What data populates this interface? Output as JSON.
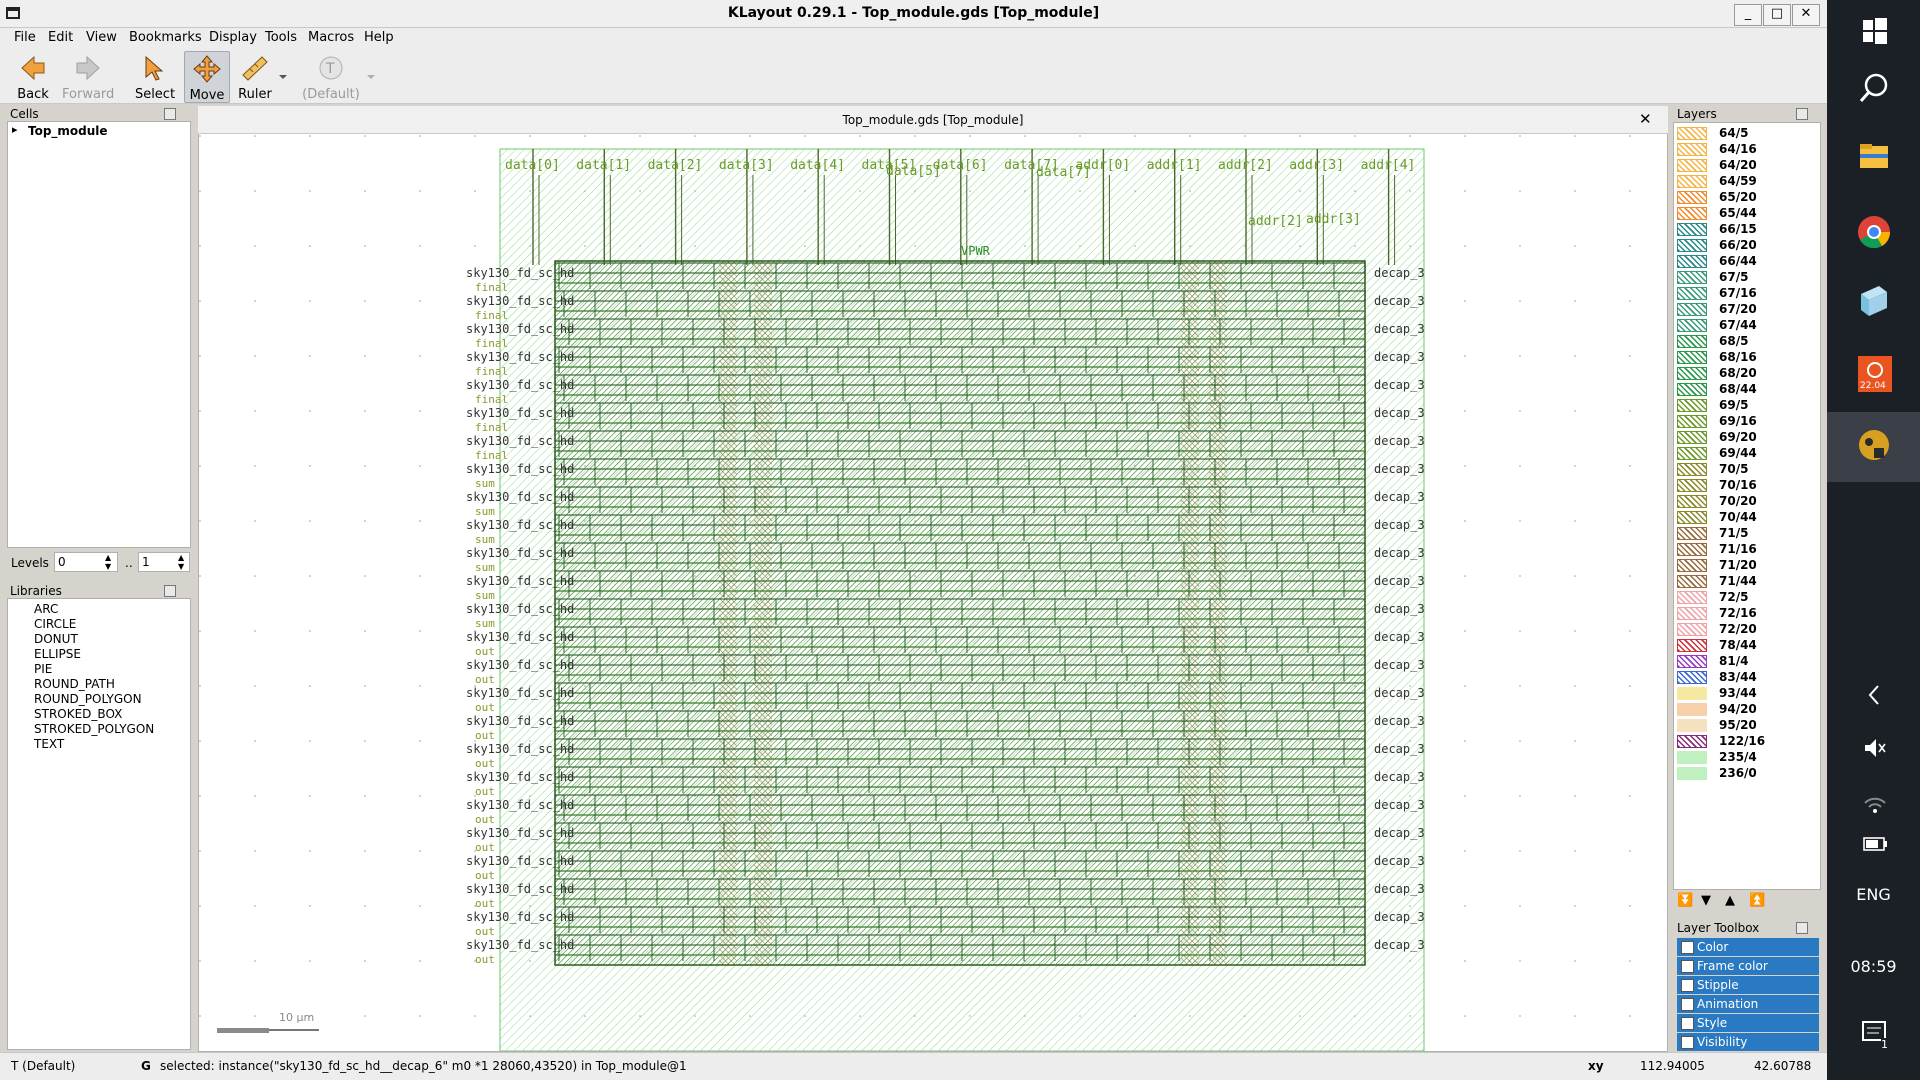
{
  "window": {
    "title": "KLayout 0.29.1 - Top_module.gds [Top_module]",
    "controls": [
      "_",
      "□",
      "✕"
    ]
  },
  "menu": [
    "File",
    "Edit",
    "View",
    "Bookmarks",
    "Display",
    "Tools",
    "Macros",
    "Help"
  ],
  "toolbar": {
    "back": "Back",
    "forward": "Forward",
    "select": "Select",
    "move": "Move",
    "ruler": "Ruler",
    "default": "(Default)"
  },
  "cells": {
    "title": "Cells",
    "tree_item": "Top_module",
    "tree_arrow": "▸"
  },
  "levels": {
    "label": "Levels",
    "from": "0",
    "sep": "..",
    "to": "1"
  },
  "libraries": {
    "title": "Libraries",
    "items": [
      "ARC",
      "CIRCLE",
      "DONUT",
      "ELLIPSE",
      "PIE",
      "ROUND_PATH",
      "ROUND_POLYGON",
      "STROKED_BOX",
      "STROKED_POLYGON",
      "TEXT"
    ]
  },
  "canvas": {
    "tab_title": "Top_module.gds [Top_module]",
    "scale_label": "10 µm",
    "top_pins": [
      "data[0]",
      "data[1]",
      "data[2]",
      "data[3]",
      "data[4]",
      "data[5]",
      "data[6]",
      "data[7]",
      "addr[0]",
      "addr[1]",
      "addr[2]",
      "addr[3]",
      "addr[4]"
    ],
    "extra_pins": [
      "data[5]",
      "data[7]",
      "addr[2]",
      "addr[3]",
      "VPWR"
    ],
    "row_label_left": "sky130_fd_sc_hd",
    "row_label_right": "decap_3",
    "side_labels": [
      "final",
      "sum",
      "out"
    ]
  },
  "layers": {
    "title": "Layers",
    "items": [
      {
        "name": "64/5",
        "color": "#f5b342",
        "pattern": "diag"
      },
      {
        "name": "64/16",
        "color": "#f5b342",
        "pattern": "diag"
      },
      {
        "name": "64/20",
        "color": "#f5b342",
        "pattern": "diag"
      },
      {
        "name": "64/59",
        "color": "#f5b342",
        "pattern": "diag"
      },
      {
        "name": "65/20",
        "color": "#f08a2a",
        "pattern": "diag"
      },
      {
        "name": "65/44",
        "color": "#f08a2a",
        "pattern": "diag"
      },
      {
        "name": "66/15",
        "color": "#2a8a8a",
        "pattern": "diag"
      },
      {
        "name": "66/20",
        "color": "#2a8a8a",
        "pattern": "diag"
      },
      {
        "name": "66/44",
        "color": "#2a8a8a",
        "pattern": "diag"
      },
      {
        "name": "67/5",
        "color": "#3a9a7a",
        "pattern": "diag"
      },
      {
        "name": "67/16",
        "color": "#3a9a7a",
        "pattern": "diag"
      },
      {
        "name": "67/20",
        "color": "#3a9a7a",
        "pattern": "diag"
      },
      {
        "name": "67/44",
        "color": "#3a9a7a",
        "pattern": "diag"
      },
      {
        "name": "68/5",
        "color": "#2a9a4a",
        "pattern": "diag"
      },
      {
        "name": "68/16",
        "color": "#2a9a4a",
        "pattern": "diag"
      },
      {
        "name": "68/20",
        "color": "#2a9a4a",
        "pattern": "diag"
      },
      {
        "name": "68/44",
        "color": "#2a9a4a",
        "pattern": "diag"
      },
      {
        "name": "69/5",
        "color": "#6a9a2a",
        "pattern": "diag"
      },
      {
        "name": "69/16",
        "color": "#6a9a2a",
        "pattern": "diag"
      },
      {
        "name": "69/20",
        "color": "#6a9a2a",
        "pattern": "diag"
      },
      {
        "name": "69/44",
        "color": "#6a9a2a",
        "pattern": "diag"
      },
      {
        "name": "70/5",
        "color": "#8a8a2a",
        "pattern": "diag"
      },
      {
        "name": "70/16",
        "color": "#8a8a2a",
        "pattern": "diag"
      },
      {
        "name": "70/20",
        "color": "#8a8a2a",
        "pattern": "diag"
      },
      {
        "name": "70/44",
        "color": "#8a8a2a",
        "pattern": "diag"
      },
      {
        "name": "71/5",
        "color": "#9a6a3a",
        "pattern": "diag"
      },
      {
        "name": "71/16",
        "color": "#9a6a3a",
        "pattern": "diag"
      },
      {
        "name": "71/20",
        "color": "#9a6a3a",
        "pattern": "diag"
      },
      {
        "name": "71/44",
        "color": "#9a6a3a",
        "pattern": "diag"
      },
      {
        "name": "72/5",
        "color": "#f2a0a8",
        "pattern": "diag"
      },
      {
        "name": "72/16",
        "color": "#f2a0a8",
        "pattern": "diag"
      },
      {
        "name": "72/20",
        "color": "#f2a0a8",
        "pattern": "diag"
      },
      {
        "name": "78/44",
        "color": "#d0303a",
        "pattern": "diag"
      },
      {
        "name": "81/4",
        "color": "#9a3ac0",
        "pattern": "diag"
      },
      {
        "name": "83/44",
        "color": "#3a6ad0",
        "pattern": "diag"
      },
      {
        "name": "93/44",
        "color": "#f5e8a0",
        "pattern": "light"
      },
      {
        "name": "94/20",
        "color": "#f5d0a8",
        "pattern": "light"
      },
      {
        "name": "95/20",
        "color": "#f5e0c0",
        "pattern": "light"
      },
      {
        "name": "122/16",
        "color": "#8a2a7a",
        "pattern": "diag"
      },
      {
        "name": "235/4",
        "color": "#c0f0c0",
        "pattern": "light"
      },
      {
        "name": "236/0",
        "color": "#c0f0c0",
        "pattern": "light"
      }
    ]
  },
  "layer_toolbox": {
    "title": "Layer Toolbox",
    "items": [
      "Color",
      "Frame color",
      "Stipple",
      "Animation",
      "Style",
      "Visibility"
    ]
  },
  "status": {
    "mode": "T  (Default)",
    "g": "G",
    "message": "selected: instance(\"sky130_fd_sc_hd__decap_6\" m0 *1 28060,43520) in Top_module@1",
    "xy_label": "xy",
    "x": "112.94005",
    "y": "42.60788"
  },
  "taskbar": {
    "lang": "ENG",
    "time": "08:59",
    "badge": "22.04",
    "notif": "1"
  }
}
